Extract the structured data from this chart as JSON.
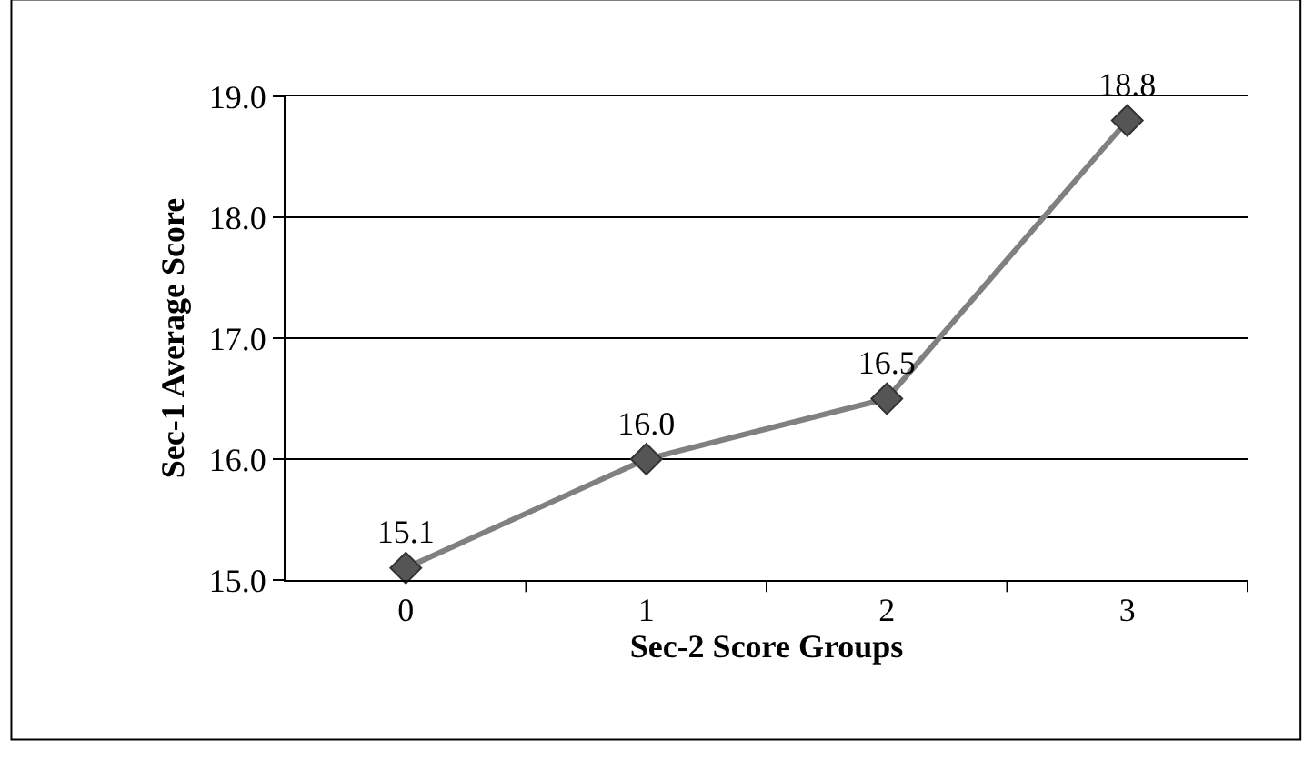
{
  "chart_data": {
    "type": "line",
    "xlabel": "Sec-2 Score Groups",
    "ylabel": "Sec-1 Average Score",
    "categories": [
      "0",
      "1",
      "2",
      "3"
    ],
    "series": [
      {
        "color": "#808080",
        "values": [
          15.1,
          16.0,
          16.5,
          18.8
        ],
        "value_labels": [
          "15.1",
          "16.0",
          "16.5",
          "18.8"
        ]
      }
    ],
    "ylim": [
      15,
      19
    ],
    "yticks": [
      {
        "value": 15,
        "label": "15.0"
      },
      {
        "value": 16,
        "label": "16.0"
      },
      {
        "value": 17,
        "label": "17.0"
      },
      {
        "value": 18,
        "label": "18.0"
      },
      {
        "value": 19,
        "label": "19.0"
      }
    ],
    "grid": "y",
    "marker": "diamond",
    "line_style": "solid"
  }
}
